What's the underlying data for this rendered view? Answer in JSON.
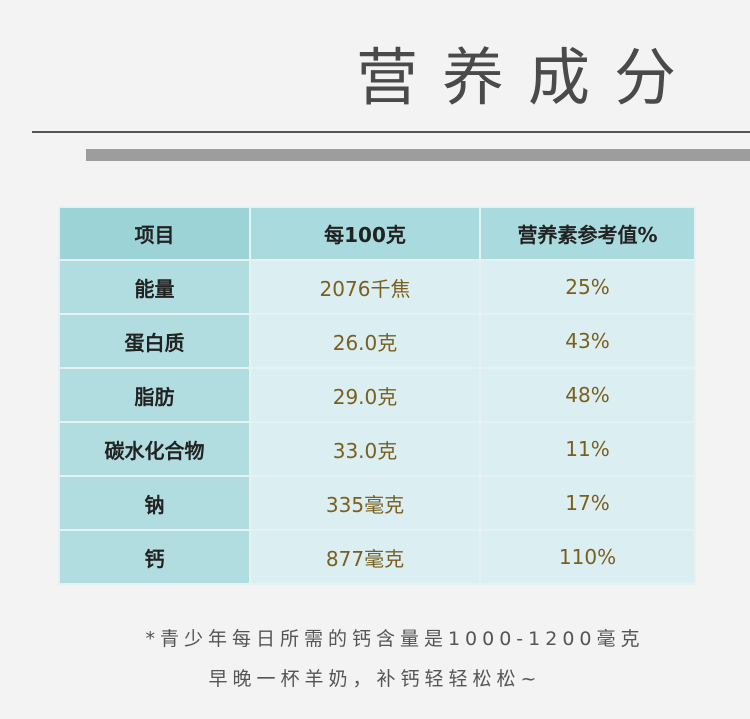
{
  "title": "营养成分",
  "table": {
    "headers": [
      "项目",
      "每100克",
      "营养素参考值%"
    ],
    "rows": [
      {
        "name": "能量",
        "per100": "2076千焦",
        "nrv": "25%"
      },
      {
        "name": "蛋白质",
        "per100": "26.0克",
        "nrv": "43%"
      },
      {
        "name": "脂肪",
        "per100": "29.0克",
        "nrv": "48%"
      },
      {
        "name": "碳水化合物",
        "per100": "33.0克",
        "nrv": "11%"
      },
      {
        "name": "钠",
        "per100": "335毫克",
        "nrv": "17%"
      },
      {
        "name": "钙",
        "per100": "877毫克",
        "nrv": "110%"
      }
    ]
  },
  "footnotes": {
    "line1": "*青少年每日所需的钙含量是1000-1200毫克",
    "line2": "早晚一杯羊奶，补钙轻轻松松~"
  }
}
